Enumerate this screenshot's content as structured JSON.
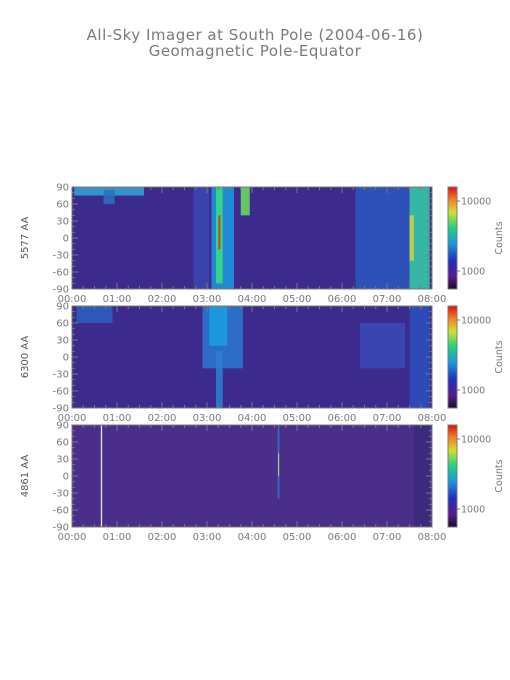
{
  "figure": {
    "title": "All-Sky Imager at South Pole (2004-06-16)",
    "subtitle": "Geomagnetic Pole-Equator"
  },
  "chart_data": [
    {
      "type": "heatmap",
      "ylabel": "5577 AA",
      "colorbar_label": "Counts",
      "colorbar_ticks": [
        "10000",
        "1000"
      ],
      "yticks": [
        "90",
        "60",
        "30",
        "0",
        "-30",
        "-60",
        "-90"
      ],
      "xticks": [
        "00:00",
        "01:00",
        "02:00",
        "03:00",
        "04:00",
        "05:00",
        "06:00",
        "07:00",
        "08:00"
      ],
      "xlim": [
        0,
        8
      ],
      "ylim": [
        -90,
        90
      ],
      "background": "#3c2a8c",
      "features": [
        {
          "x": [
            0.05,
            1.6
          ],
          "y": [
            75,
            90
          ],
          "color": "#2fa8d8"
        },
        {
          "x": [
            0.7,
            0.95
          ],
          "y": [
            60,
            85
          ],
          "color": "#2a70c0"
        },
        {
          "x": [
            2.7,
            3.05
          ],
          "y": [
            -90,
            90
          ],
          "color": "#3a48b0"
        },
        {
          "x": [
            3.1,
            3.6
          ],
          "y": [
            -90,
            90
          ],
          "color": "#1a9ae0"
        },
        {
          "x": [
            3.2,
            3.35
          ],
          "y": [
            -80,
            90
          ],
          "color": "#3ae07a"
        },
        {
          "x": [
            3.25,
            3.3
          ],
          "y": [
            -20,
            40
          ],
          "color": "#e03020"
        },
        {
          "x": [
            3.75,
            3.95
          ],
          "y": [
            40,
            90
          ],
          "color": "#6ae060"
        },
        {
          "x": [
            6.3,
            7.9
          ],
          "y": [
            -90,
            90
          ],
          "color": "#2a58c0"
        },
        {
          "x": [
            7.5,
            7.95
          ],
          "y": [
            -90,
            90
          ],
          "color": "#3ac8a0"
        },
        {
          "x": [
            7.5,
            7.6
          ],
          "y": [
            -40,
            40
          ],
          "color": "#d0d040"
        }
      ]
    },
    {
      "type": "heatmap",
      "ylabel": "6300 AA",
      "colorbar_label": "Counts",
      "colorbar_ticks": [
        "10000",
        "1000"
      ],
      "yticks": [
        "90",
        "60",
        "30",
        "0",
        "-30",
        "-60",
        "-90"
      ],
      "xticks": [
        "00:00",
        "01:00",
        "02:00",
        "03:00",
        "04:00",
        "05:00",
        "06:00",
        "07:00",
        "08:00"
      ],
      "xlim": [
        0,
        8
      ],
      "ylim": [
        -90,
        90
      ],
      "background": "#3c2a8c",
      "features": [
        {
          "x": [
            0.1,
            0.9
          ],
          "y": [
            60,
            90
          ],
          "color": "#2a60c0"
        },
        {
          "x": [
            2.9,
            3.8
          ],
          "y": [
            -20,
            90
          ],
          "color": "#2a78d0"
        },
        {
          "x": [
            3.05,
            3.45
          ],
          "y": [
            20,
            90
          ],
          "color": "#1aa0e0"
        },
        {
          "x": [
            3.2,
            3.35
          ],
          "y": [
            -90,
            10
          ],
          "color": "#2a80d0"
        },
        {
          "x": [
            6.4,
            7.4
          ],
          "y": [
            -20,
            60
          ],
          "color": "#3a4ab8"
        },
        {
          "x": [
            7.5,
            7.95
          ],
          "y": [
            -90,
            90
          ],
          "color": "#2a50c0"
        }
      ]
    },
    {
      "type": "heatmap",
      "ylabel": "4861 AA",
      "colorbar_label": "Counts",
      "colorbar_ticks": [
        "10000",
        "1000"
      ],
      "yticks": [
        "90",
        "60",
        "30",
        "0",
        "-30",
        "-60",
        "-90"
      ],
      "xticks": [
        "00:00",
        "01:00",
        "02:00",
        "03:00",
        "04:00",
        "05:00",
        "06:00",
        "07:00",
        "08:00"
      ],
      "xlim": [
        0,
        8
      ],
      "ylim": [
        -90,
        90
      ],
      "background": "#4a2e8a",
      "features": [
        {
          "x": [
            0.64,
            0.67
          ],
          "y": [
            -90,
            90
          ],
          "color": "#ffffff"
        },
        {
          "x": [
            4.57,
            4.61
          ],
          "y": [
            -40,
            90
          ],
          "color": "#3a70d0"
        },
        {
          "x": [
            4.58,
            4.6
          ],
          "y": [
            0,
            40
          ],
          "color": "#e0e040"
        },
        {
          "x": [
            7.6,
            7.95
          ],
          "y": [
            -90,
            90
          ],
          "color": "#3a2a7a"
        }
      ]
    }
  ]
}
